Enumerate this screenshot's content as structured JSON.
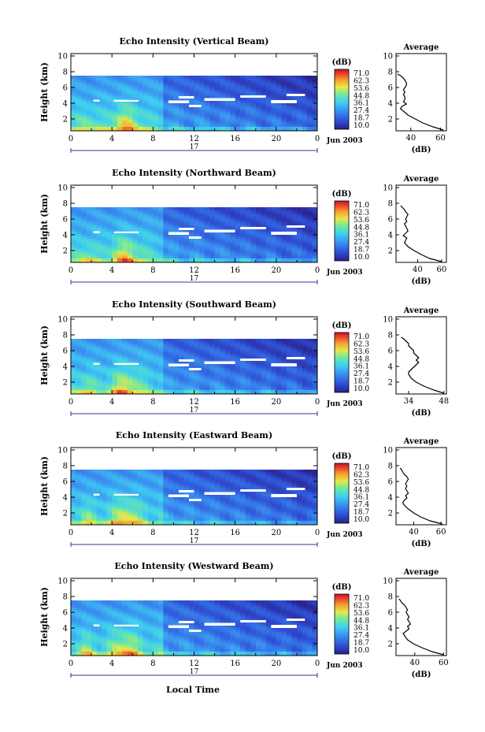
{
  "figure": {
    "xlabel": "Local Time",
    "date_label": "Jun 2003",
    "day_label": "17",
    "cbar_unit": "(dB)",
    "avg_title": "Average",
    "avg_xlabel": "(dB)",
    "ylabel": "Height (km)"
  },
  "chart_data": [
    {
      "type": "heatmap",
      "title": "Echo Intensity (Vertical Beam)",
      "ylabel": "Height (km)",
      "x_ticks": [
        "0",
        "4",
        "8",
        "12",
        "16",
        "20",
        "0"
      ],
      "xlim": [
        0,
        24
      ],
      "y_ticks": [
        "2",
        "4",
        "6",
        "8",
        "10"
      ],
      "ylim": [
        0.5,
        10.3
      ],
      "colorbar": {
        "unit": "(dB)",
        "ticks": [
          "71.0",
          "62.3",
          "53.6",
          "44.8",
          "36.1",
          "27.4",
          "18.7",
          "10.0"
        ],
        "range": [
          10.0,
          71.0
        ]
      },
      "profile": {
        "title": "Average",
        "xlabel": "(dB)",
        "x_ticks": [
          "40",
          "60"
        ],
        "xlim": [
          30,
          64
        ],
        "ylim": [
          0.5,
          10.3
        ],
        "heights": [
          0.6,
          1.0,
          1.5,
          2.0,
          2.5,
          3.0,
          3.3,
          3.6,
          3.9,
          4.2,
          4.5,
          4.8,
          5.1,
          5.4,
          5.7,
          6.0,
          6.3,
          6.6,
          6.9,
          7.2,
          7.5,
          7.7
        ],
        "values": [
          62,
          55,
          48,
          43,
          38,
          35,
          33,
          34,
          37,
          35,
          36,
          36,
          35,
          36,
          35,
          36,
          37,
          37,
          36,
          35,
          33,
          31
        ]
      }
    },
    {
      "type": "heatmap",
      "title": "Echo Intensity (Northward Beam)",
      "ylabel": "Height (km)",
      "x_ticks": [
        "0",
        "4",
        "8",
        "12",
        "16",
        "20",
        "0"
      ],
      "xlim": [
        0,
        24
      ],
      "y_ticks": [
        "2",
        "4",
        "6",
        "8",
        "10"
      ],
      "ylim": [
        0.5,
        10.3
      ],
      "colorbar": {
        "unit": "(dB)",
        "ticks": [
          "71.0",
          "62.3",
          "53.6",
          "44.8",
          "36.1",
          "27.4",
          "18.7",
          "10.0"
        ],
        "range": [
          10.0,
          71.0
        ]
      },
      "profile": {
        "title": "Average",
        "xlabel": "(dB)",
        "x_ticks": [
          "40",
          "60"
        ],
        "xlim": [
          22,
          64
        ],
        "ylim": [
          0.5,
          10.3
        ],
        "heights": [
          0.6,
          1.0,
          1.5,
          2.0,
          2.5,
          3.0,
          3.3,
          3.6,
          3.9,
          4.2,
          4.5,
          4.8,
          5.1,
          5.4,
          5.7,
          6.0,
          6.3,
          6.6,
          6.9,
          7.2,
          7.5,
          7.7
        ],
        "values": [
          60,
          50,
          43,
          37,
          32,
          29,
          30,
          31,
          28,
          30,
          32,
          31,
          30,
          29,
          31,
          30,
          31,
          32,
          30,
          29,
          27,
          26
        ]
      }
    },
    {
      "type": "heatmap",
      "title": "Echo Intensity (Southward Beam)",
      "ylabel": "Height (km)",
      "x_ticks": [
        "0",
        "4",
        "8",
        "12",
        "16",
        "20",
        "0"
      ],
      "xlim": [
        0,
        24
      ],
      "y_ticks": [
        "2",
        "4",
        "6",
        "8",
        "10"
      ],
      "ylim": [
        0.5,
        10.3
      ],
      "colorbar": {
        "unit": "(dB)",
        "ticks": [
          "71.0",
          "62.3",
          "53.6",
          "44.8",
          "36.1",
          "27.4",
          "18.7",
          "10.0"
        ],
        "range": [
          10.0,
          71.0
        ]
      },
      "profile": {
        "title": "Average",
        "xlabel": "(dB)",
        "x_ticks": [
          "34",
          "48"
        ],
        "xlim": [
          29,
          49
        ],
        "ylim": [
          0.5,
          10.3
        ],
        "heights": [
          0.6,
          1.0,
          1.5,
          2.0,
          2.5,
          3.0,
          3.3,
          3.6,
          3.9,
          4.2,
          4.5,
          4.8,
          5.1,
          5.4,
          5.7,
          6.0,
          6.3,
          6.6,
          6.9,
          7.2,
          7.5,
          7.7
        ],
        "values": [
          48,
          44,
          40,
          37,
          35,
          34,
          34,
          35,
          36,
          37,
          38,
          37,
          38,
          37,
          36,
          36,
          35,
          34,
          34,
          33,
          32,
          31
        ]
      }
    },
    {
      "type": "heatmap",
      "title": "Echo Intensity (Eastward Beam)",
      "ylabel": "Height (km)",
      "x_ticks": [
        "0",
        "4",
        "8",
        "12",
        "16",
        "20",
        "0"
      ],
      "xlim": [
        0,
        24
      ],
      "y_ticks": [
        "2",
        "4",
        "6",
        "8",
        "10"
      ],
      "ylim": [
        0.5,
        10.3
      ],
      "colorbar": {
        "unit": "(dB)",
        "ticks": [
          "71.0",
          "62.3",
          "53.6",
          "44.8",
          "36.1",
          "27.4",
          "18.7",
          "10.0"
        ],
        "range": [
          10.0,
          71.0
        ]
      },
      "profile": {
        "title": "Average",
        "xlabel": "(dB)",
        "x_ticks": [
          "40",
          "60"
        ],
        "xlim": [
          27,
          64
        ],
        "ylim": [
          0.5,
          10.3
        ],
        "heights": [
          0.6,
          1.0,
          1.5,
          2.0,
          2.5,
          3.0,
          3.3,
          3.6,
          3.9,
          4.2,
          4.5,
          4.8,
          5.1,
          5.4,
          5.7,
          6.0,
          6.3,
          6.6,
          6.9,
          7.2,
          7.5,
          7.7
        ],
        "values": [
          61,
          52,
          45,
          40,
          36,
          33,
          32,
          33,
          35,
          34,
          36,
          35,
          34,
          35,
          34,
          35,
          36,
          35,
          33,
          32,
          31,
          30
        ]
      }
    },
    {
      "type": "heatmap",
      "title": "Echo Intensity (Westward Beam)",
      "ylabel": "Height (km)",
      "x_ticks": [
        "0",
        "4",
        "8",
        "12",
        "16",
        "20",
        "0"
      ],
      "xlim": [
        0,
        24
      ],
      "y_ticks": [
        "2",
        "4",
        "6",
        "8",
        "10"
      ],
      "ylim": [
        0.5,
        10.3
      ],
      "colorbar": {
        "unit": "(dB)",
        "ticks": [
          "71.0",
          "62.3",
          "53.6",
          "44.8",
          "36.1",
          "27.4",
          "18.7",
          "10.0"
        ],
        "range": [
          10.0,
          71.0
        ]
      },
      "profile": {
        "title": "Average",
        "xlabel": "(dB)",
        "x_ticks": [
          "40",
          "60"
        ],
        "xlim": [
          27,
          62
        ],
        "ylim": [
          0.5,
          10.3
        ],
        "heights": [
          0.6,
          1.0,
          1.5,
          2.0,
          2.5,
          3.0,
          3.3,
          3.6,
          3.9,
          4.2,
          4.5,
          4.8,
          5.1,
          5.4,
          5.7,
          6.0,
          6.3,
          6.6,
          6.9,
          7.2,
          7.5,
          7.7
        ],
        "values": [
          60,
          52,
          45,
          39,
          35,
          33,
          32,
          34,
          36,
          35,
          37,
          36,
          35,
          36,
          35,
          34,
          35,
          34,
          33,
          31,
          30,
          29
        ]
      }
    }
  ]
}
